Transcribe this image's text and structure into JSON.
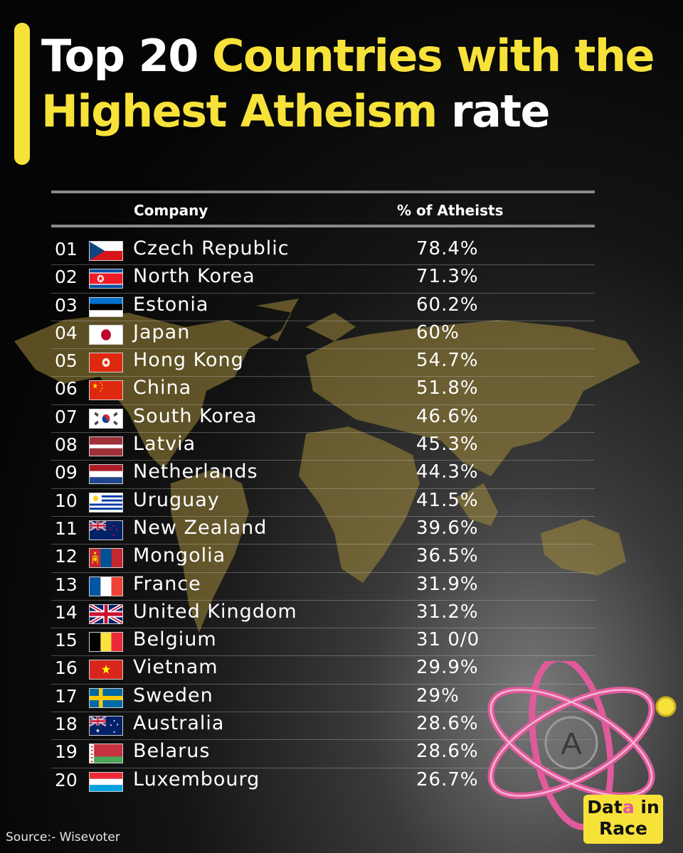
{
  "title": {
    "part1": "Top 20 ",
    "part2": "Countries with the",
    "part3": "Highest Atheism",
    "part4": " rate"
  },
  "table": {
    "col_country": "Company",
    "col_value": "% of Atheists"
  },
  "chart_data": {
    "type": "table",
    "columns": [
      "Company",
      "% of Atheists"
    ],
    "rows": [
      {
        "rank": "01",
        "country": "Czech Republic",
        "value": "78.4%",
        "flag": "czech"
      },
      {
        "rank": "02",
        "country": "North Korea",
        "value": "71.3%",
        "flag": "northkorea"
      },
      {
        "rank": "03",
        "country": "Estonia",
        "value": "60.2%",
        "flag": "estonia"
      },
      {
        "rank": "04",
        "country": "Japan",
        "value": "60%",
        "flag": "japan"
      },
      {
        "rank": "05",
        "country": "Hong Kong",
        "value": "54.7%",
        "flag": "hongkong"
      },
      {
        "rank": "06",
        "country": "China",
        "value": "51.8%",
        "flag": "china"
      },
      {
        "rank": "07",
        "country": "South Korea",
        "value": "46.6%",
        "flag": "southkorea"
      },
      {
        "rank": "08",
        "country": "Latvia",
        "value": "45.3%",
        "flag": "latvia"
      },
      {
        "rank": "09",
        "country": "Netherlands",
        "value": "44.3%",
        "flag": "netherlands"
      },
      {
        "rank": "10",
        "country": "Uruguay",
        "value": "41.5%",
        "flag": "uruguay"
      },
      {
        "rank": "11",
        "country": "New Zealand",
        "value": "39.6%",
        "flag": "newzealand"
      },
      {
        "rank": "12",
        "country": "Mongolia",
        "value": "36.5%",
        "flag": "mongolia"
      },
      {
        "rank": "13",
        "country": "France",
        "value": "31.9%",
        "flag": "france"
      },
      {
        "rank": "14",
        "country": "United Kingdom",
        "value": "31.2%",
        "flag": "uk"
      },
      {
        "rank": "15",
        "country": "Belgium",
        "value": "31 0/0",
        "flag": "belgium"
      },
      {
        "rank": "16",
        "country": "Vietnam",
        "value": "29.9%",
        "flag": "vietnam"
      },
      {
        "rank": "17",
        "country": "Sweden",
        "value": "29%",
        "flag": "sweden"
      },
      {
        "rank": "18",
        "country": "Australia",
        "value": "28.6%",
        "flag": "australia"
      },
      {
        "rank": "19",
        "country": "Belarus",
        "value": "28.6%",
        "flag": "belarus"
      },
      {
        "rank": "20",
        "country": "Luxembourg",
        "value": "26.7%",
        "flag": "luxembourg"
      }
    ]
  },
  "source": "Source:- Wisevoter",
  "brand": {
    "line1_a": "Dat",
    "line1_b": "a",
    "line1_c": " in",
    "line2": "Race",
    "logo_letter": "A"
  },
  "colors": {
    "accent": "#f7e23a",
    "orbit": "#e05a9c",
    "background": "#0a0a0a"
  },
  "icons": [
    "world-map-icon",
    "atom-logo-icon"
  ]
}
